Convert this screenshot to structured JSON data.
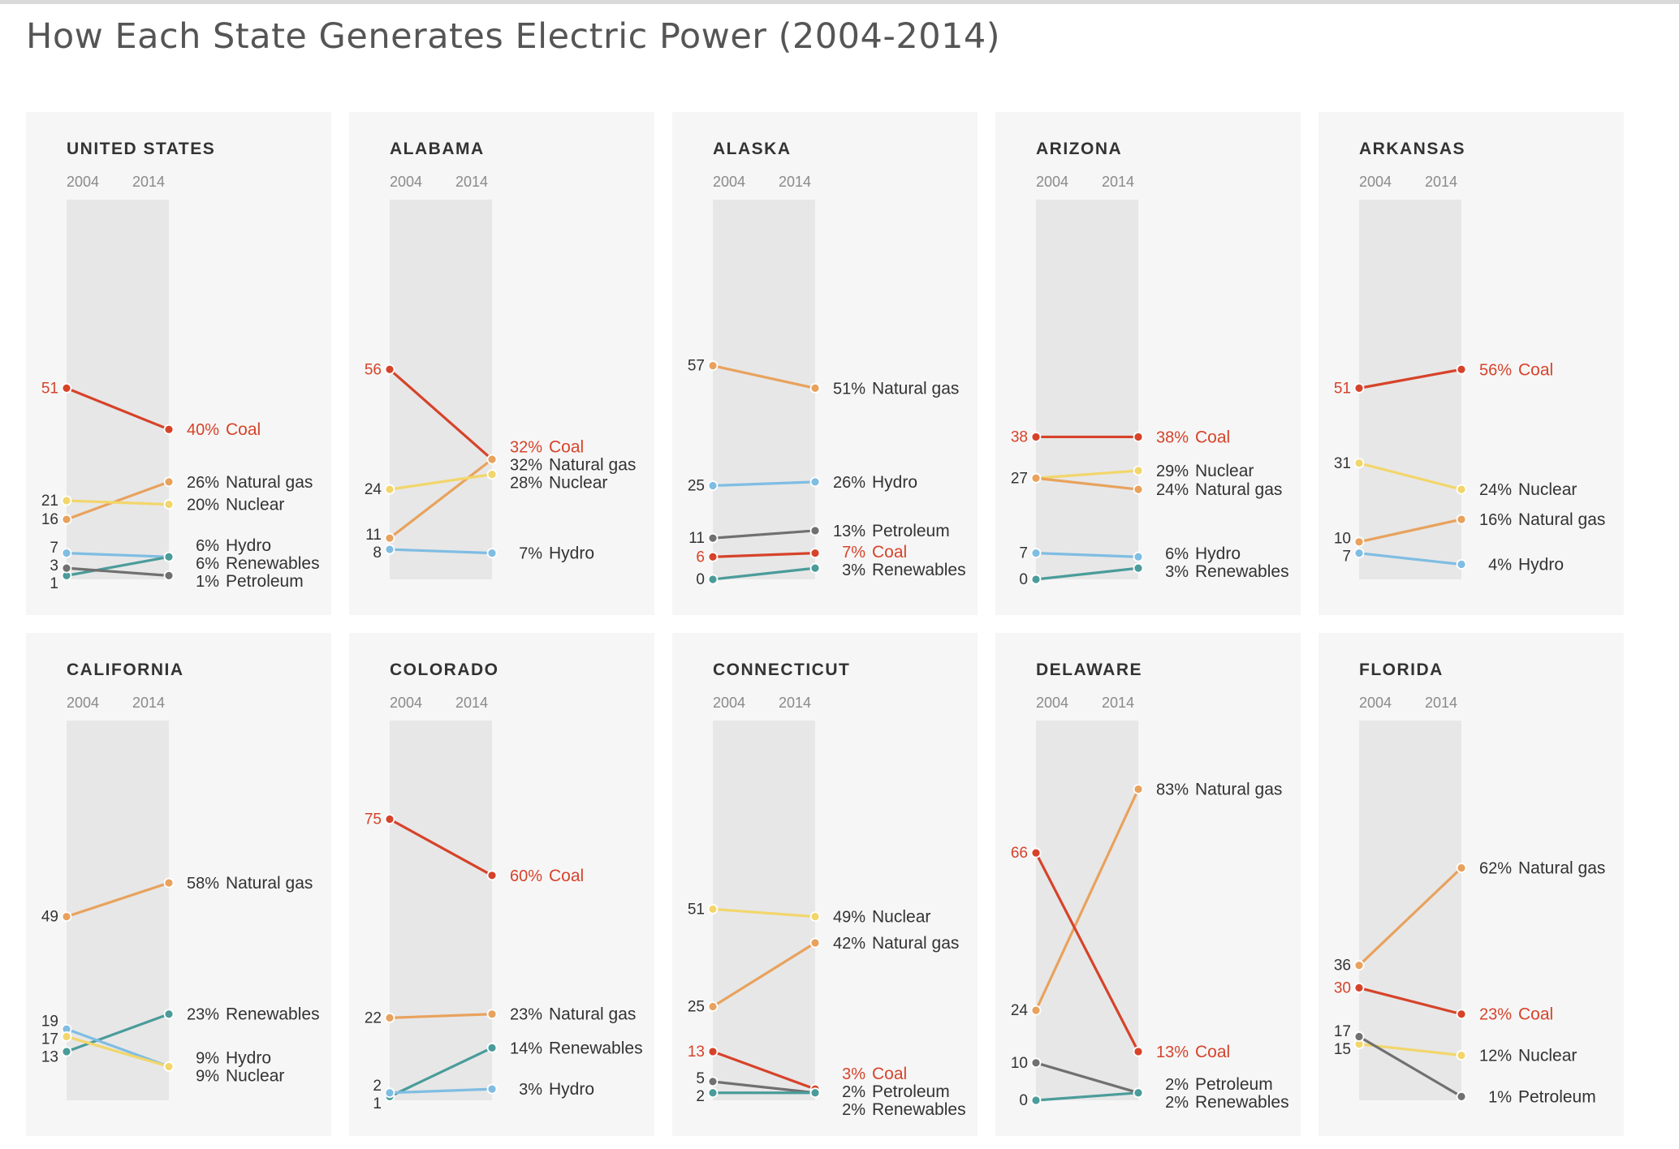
{
  "title": "How Each State Generates Electric Power (2004-2014)",
  "colors": {
    "Coal": "#d6432a",
    "Natural gas": "#e8a25d",
    "Nuclear": "#f2d66b",
    "Hydro": "#7fbde3",
    "Renewables": "#4a9c9a",
    "Petroleum": "#707070",
    "label_default": "#333333",
    "label_coal": "#d6432a"
  },
  "years": [
    "2004",
    "2014"
  ],
  "chart_data": [
    {
      "type": "line",
      "title": "UNITED STATES",
      "x": [
        "2004",
        "2014"
      ],
      "series": [
        {
          "name": "Coal",
          "values": [
            51,
            40
          ],
          "label_2004": "51",
          "label_2014": "40%"
        },
        {
          "name": "Natural gas",
          "values": [
            16,
            26
          ],
          "label_2004": "16",
          "label_2014": "26%"
        },
        {
          "name": "Nuclear",
          "values": [
            21,
            20
          ],
          "label_2004": "21",
          "label_2014": "20%"
        },
        {
          "name": "Hydro",
          "values": [
            7,
            6
          ],
          "label_2004": "7",
          "label_2014": "6%"
        },
        {
          "name": "Renewables",
          "values": [
            1,
            6
          ],
          "label_2004": "1",
          "label_2014": "6%"
        },
        {
          "name": "Petroleum",
          "values": [
            3,
            1
          ],
          "label_2004": "3",
          "label_2014": "1%"
        }
      ]
    },
    {
      "type": "line",
      "title": "ALABAMA",
      "x": [
        "2004",
        "2014"
      ],
      "series": [
        {
          "name": "Coal",
          "values": [
            56,
            32
          ],
          "label_2004": "56",
          "label_2014": "32%"
        },
        {
          "name": "Natural gas",
          "values": [
            11,
            32
          ],
          "label_2004": "11",
          "label_2014": "32%"
        },
        {
          "name": "Nuclear",
          "values": [
            24,
            28
          ],
          "label_2004": "24",
          "label_2014": "28%"
        },
        {
          "name": "Hydro",
          "values": [
            8,
            7
          ],
          "label_2004": "8",
          "label_2014": "7%"
        }
      ]
    },
    {
      "type": "line",
      "title": "ALASKA",
      "x": [
        "2004",
        "2014"
      ],
      "series": [
        {
          "name": "Natural gas",
          "values": [
            57,
            51
          ],
          "label_2004": "57",
          "label_2014": "51%"
        },
        {
          "name": "Hydro",
          "values": [
            25,
            26
          ],
          "label_2004": "25",
          "label_2014": "26%"
        },
        {
          "name": "Petroleum",
          "values": [
            11,
            13
          ],
          "label_2004": "11",
          "label_2014": "13%"
        },
        {
          "name": "Coal",
          "values": [
            6,
            7
          ],
          "label_2004": "6",
          "label_2014": "7%"
        },
        {
          "name": "Renewables",
          "values": [
            0,
            3
          ],
          "label_2004": "0",
          "label_2014": "3%"
        }
      ]
    },
    {
      "type": "line",
      "title": "ARIZONA",
      "x": [
        "2004",
        "2014"
      ],
      "series": [
        {
          "name": "Coal",
          "values": [
            38,
            38
          ],
          "label_2004": "38",
          "label_2014": "38%"
        },
        {
          "name": "Nuclear",
          "values": [
            27,
            29
          ],
          "label_2004": "27",
          "label_2014": "29%"
        },
        {
          "name": "Natural gas",
          "values": [
            27,
            24
          ],
          "label_2004": "",
          "label_2014": "24%"
        },
        {
          "name": "Hydro",
          "values": [
            7,
            6
          ],
          "label_2004": "7",
          "label_2014": "6%"
        },
        {
          "name": "Renewables",
          "values": [
            0,
            3
          ],
          "label_2004": "0",
          "label_2014": "3%"
        }
      ]
    },
    {
      "type": "line",
      "title": "ARKANSAS",
      "x": [
        "2004",
        "2014"
      ],
      "series": [
        {
          "name": "Coal",
          "values": [
            51,
            56
          ],
          "label_2004": "51",
          "label_2014": "56%"
        },
        {
          "name": "Nuclear",
          "values": [
            31,
            24
          ],
          "label_2004": "31",
          "label_2014": "24%"
        },
        {
          "name": "Natural gas",
          "values": [
            10,
            16
          ],
          "label_2004": "10",
          "label_2014": "16%"
        },
        {
          "name": "Hydro",
          "values": [
            7,
            4
          ],
          "label_2004": "7",
          "label_2014": "4%"
        }
      ]
    },
    {
      "type": "line",
      "title": "CALIFORNIA",
      "x": [
        "2004",
        "2014"
      ],
      "series": [
        {
          "name": "Natural gas",
          "values": [
            49,
            58
          ],
          "label_2004": "49",
          "label_2014": "58%"
        },
        {
          "name": "Renewables",
          "values": [
            13,
            23
          ],
          "label_2004": "13",
          "label_2014": "23%"
        },
        {
          "name": "Hydro",
          "values": [
            19,
            9
          ],
          "label_2004": "19",
          "label_2014": "9%"
        },
        {
          "name": "Nuclear",
          "values": [
            17,
            9
          ],
          "label_2004": "17",
          "label_2014": "9%"
        }
      ]
    },
    {
      "type": "line",
      "title": "COLORADO",
      "x": [
        "2004",
        "2014"
      ],
      "series": [
        {
          "name": "Coal",
          "values": [
            75,
            60
          ],
          "label_2004": "75",
          "label_2014": "60%"
        },
        {
          "name": "Natural gas",
          "values": [
            22,
            23
          ],
          "label_2004": "22",
          "label_2014": "23%"
        },
        {
          "name": "Renewables",
          "values": [
            1,
            14
          ],
          "label_2004": "1",
          "label_2014": "14%"
        },
        {
          "name": "Hydro",
          "values": [
            2,
            3
          ],
          "label_2004": "2",
          "label_2014": "3%"
        }
      ]
    },
    {
      "type": "line",
      "title": "CONNECTICUT",
      "x": [
        "2004",
        "2014"
      ],
      "series": [
        {
          "name": "Nuclear",
          "values": [
            51,
            49
          ],
          "label_2004": "51",
          "label_2014": "49%"
        },
        {
          "name": "Natural gas",
          "values": [
            25,
            42
          ],
          "label_2004": "25",
          "label_2014": "42%"
        },
        {
          "name": "Coal",
          "values": [
            13,
            3
          ],
          "label_2004": "13",
          "label_2014": "3%"
        },
        {
          "name": "Petroleum",
          "values": [
            5,
            2
          ],
          "label_2004": "5",
          "label_2014": "2%"
        },
        {
          "name": "Renewables",
          "values": [
            2,
            2
          ],
          "label_2004": "2",
          "label_2014": "2%"
        }
      ]
    },
    {
      "type": "line",
      "title": "DELAWARE",
      "x": [
        "2004",
        "2014"
      ],
      "series": [
        {
          "name": "Natural gas",
          "values": [
            24,
            83
          ],
          "label_2004": "24",
          "label_2014": "83%"
        },
        {
          "name": "Coal",
          "values": [
            66,
            13
          ],
          "label_2004": "66",
          "label_2014": "13%"
        },
        {
          "name": "Petroleum",
          "values": [
            10,
            2
          ],
          "label_2004": "10",
          "label_2014": "2%"
        },
        {
          "name": "Renewables",
          "values": [
            0,
            2
          ],
          "label_2004": "0",
          "label_2014": "2%"
        }
      ]
    },
    {
      "type": "line",
      "title": "FLORIDA",
      "x": [
        "2004",
        "2014"
      ],
      "series": [
        {
          "name": "Natural gas",
          "values": [
            36,
            62
          ],
          "label_2004": "36",
          "label_2014": "62%"
        },
        {
          "name": "Coal",
          "values": [
            30,
            23
          ],
          "label_2004": "30",
          "label_2014": "23%"
        },
        {
          "name": "Nuclear",
          "values": [
            15,
            12
          ],
          "label_2004": "15",
          "label_2014": "12%"
        },
        {
          "name": "Petroleum",
          "values": [
            17,
            1
          ],
          "label_2004": "17",
          "label_2014": "1%"
        }
      ]
    }
  ]
}
